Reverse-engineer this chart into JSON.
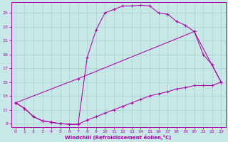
{
  "bg_color": "#c8e8e8",
  "grid_color": "#a8d0d0",
  "line_color": "#aa00aa",
  "xlabel": "Windchill (Refroidissement éolien,°C)",
  "xlim": [
    -0.5,
    23.5
  ],
  "ylim": [
    8.5,
    26.5
  ],
  "xticks": [
    0,
    1,
    2,
    3,
    4,
    5,
    6,
    7,
    8,
    9,
    10,
    11,
    12,
    13,
    14,
    15,
    16,
    17,
    18,
    19,
    20,
    21,
    22,
    23
  ],
  "yticks": [
    9,
    11,
    13,
    15,
    17,
    19,
    21,
    23,
    25
  ],
  "line1_x": [
    0,
    1,
    2,
    3,
    4,
    5,
    6,
    7,
    8,
    9,
    10,
    11,
    12,
    13,
    14,
    15,
    16,
    17,
    18,
    19,
    20,
    21,
    22,
    23
  ],
  "line1_y": [
    12.0,
    11.2,
    10.0,
    9.4,
    9.2,
    9.0,
    8.9,
    8.9,
    18.5,
    22.5,
    25.0,
    25.5,
    26.0,
    26.0,
    26.1,
    26.0,
    25.0,
    24.8,
    23.8,
    23.2,
    22.3,
    19.0,
    17.5,
    15.0
  ],
  "line2_x": [
    0,
    1,
    2,
    3,
    4,
    5,
    6,
    7,
    8,
    9,
    10,
    11,
    12,
    13,
    14,
    15,
    16,
    17,
    18,
    19,
    20,
    21,
    22,
    23
  ],
  "line2_y": [
    12.0,
    11.2,
    10.0,
    9.4,
    9.2,
    9.0,
    8.9,
    8.9,
    9.5,
    10.0,
    10.5,
    11.0,
    11.5,
    12.0,
    12.5,
    13.0,
    13.3,
    13.6,
    14.0,
    14.2,
    14.5,
    14.5,
    14.5,
    15.0
  ],
  "line3_x": [
    0,
    7,
    20,
    23
  ],
  "line3_y": [
    12.0,
    15.5,
    22.3,
    15.0
  ]
}
